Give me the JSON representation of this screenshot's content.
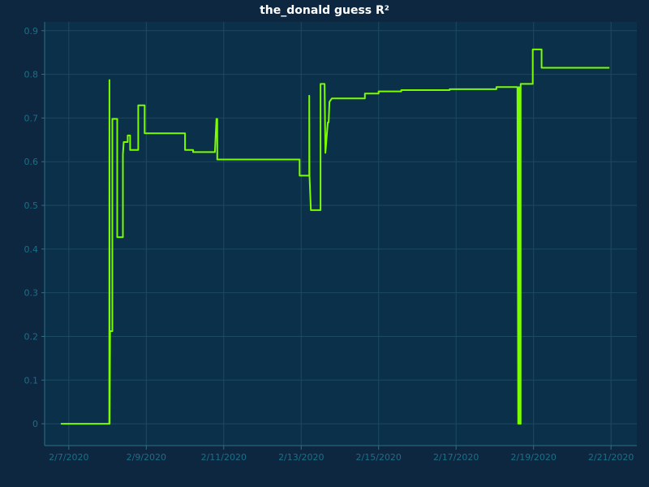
{
  "chart_data": {
    "type": "line",
    "title": "the_donald guess R²",
    "xlabel": "",
    "ylabel": "",
    "x_axis": {
      "type": "date",
      "range": [
        "2020-02-06T09:00",
        "2020-02-21T16:00"
      ],
      "ticks": [
        {
          "value": "2020-02-07T00:00",
          "label": "2/7/2020"
        },
        {
          "value": "2020-02-09T00:00",
          "label": "2/9/2020"
        },
        {
          "value": "2020-02-11T00:00",
          "label": "2/11/2020"
        },
        {
          "value": "2020-02-13T00:00",
          "label": "2/13/2020"
        },
        {
          "value": "2020-02-15T00:00",
          "label": "2/15/2020"
        },
        {
          "value": "2020-02-17T00:00",
          "label": "2/17/2020"
        },
        {
          "value": "2020-02-19T00:00",
          "label": "2/19/2020"
        },
        {
          "value": "2020-02-21T00:00",
          "label": "2/21/2020"
        }
      ]
    },
    "y_axis": {
      "range": [
        -0.05,
        0.92
      ],
      "ticks": [
        0,
        0.1,
        0.2,
        0.3,
        0.4,
        0.5,
        0.6,
        0.7,
        0.8,
        0.9
      ]
    },
    "grid": true,
    "legend": "none",
    "colors": {
      "page_background": "#0d2740",
      "plot_background": "#0b3049",
      "grid": "#1d4a60",
      "axis": "#2c6f85",
      "tick_text": "#1c6f87",
      "title": "#ffffff",
      "line": "#7cfc00"
    },
    "series": [
      {
        "points": [
          [
            "2020-02-06T19:00",
            0
          ],
          [
            "2020-02-08T01:05",
            0
          ],
          [
            "2020-02-08T01:10",
            0.787
          ],
          [
            "2020-02-08T01:20",
            0
          ],
          [
            "2020-02-08T01:35",
            0.212
          ],
          [
            "2020-02-08T03:00",
            0.212
          ],
          [
            "2020-02-08T03:00",
            0.698
          ],
          [
            "2020-02-08T06:00",
            0.698
          ],
          [
            "2020-02-08T06:00",
            0.427
          ],
          [
            "2020-02-08T09:30",
            0.427
          ],
          [
            "2020-02-08T09:30",
            0.617
          ],
          [
            "2020-02-08T10:00",
            0.645
          ],
          [
            "2020-02-08T12:30",
            0.645
          ],
          [
            "2020-02-08T12:30",
            0.66
          ],
          [
            "2020-02-08T14:00",
            0.66
          ],
          [
            "2020-02-08T14:00",
            0.627
          ],
          [
            "2020-02-08T19:00",
            0.627
          ],
          [
            "2020-02-08T19:00",
            0.729
          ],
          [
            "2020-02-08T23:00",
            0.729
          ],
          [
            "2020-02-08T23:00",
            0.665
          ],
          [
            "2020-02-10T00:00",
            0.665
          ],
          [
            "2020-02-10T00:00",
            0.627
          ],
          [
            "2020-02-10T05:00",
            0.627
          ],
          [
            "2020-02-10T05:00",
            0.622
          ],
          [
            "2020-02-10T18:30",
            0.622
          ],
          [
            "2020-02-10T19:30",
            0.698
          ],
          [
            "2020-02-10T20:00",
            0.698
          ],
          [
            "2020-02-10T20:00",
            0.605
          ],
          [
            "2020-02-12T23:00",
            0.605
          ],
          [
            "2020-02-12T23:00",
            0.568
          ],
          [
            "2020-02-13T05:00",
            0.568
          ],
          [
            "2020-02-13T05:00",
            0.751
          ],
          [
            "2020-02-13T05:10",
            0.568
          ],
          [
            "2020-02-13T06:00",
            0.489
          ],
          [
            "2020-02-13T12:00",
            0.489
          ],
          [
            "2020-02-13T12:00",
            0.778
          ],
          [
            "2020-02-13T14:30",
            0.778
          ],
          [
            "2020-02-13T15:00",
            0.62
          ],
          [
            "2020-02-13T16:30",
            0.69
          ],
          [
            "2020-02-13T17:00",
            0.69
          ],
          [
            "2020-02-13T17:30",
            0.737
          ],
          [
            "2020-02-13T19:00",
            0.745
          ],
          [
            "2020-02-14T15:30",
            0.745
          ],
          [
            "2020-02-14T15:30",
            0.756
          ],
          [
            "2020-02-15T00:00",
            0.756
          ],
          [
            "2020-02-15T00:00",
            0.761
          ],
          [
            "2020-02-15T14:00",
            0.761
          ],
          [
            "2020-02-15T14:00",
            0.764
          ],
          [
            "2020-02-16T20:00",
            0.764
          ],
          [
            "2020-02-16T20:00",
            0.766
          ],
          [
            "2020-02-18T01:00",
            0.766
          ],
          [
            "2020-02-18T01:00",
            0.771
          ],
          [
            "2020-02-18T14:00",
            0.771
          ],
          [
            "2020-02-18T14:30",
            0
          ],
          [
            "2020-02-18T15:00",
            0.771
          ],
          [
            "2020-02-18T15:30",
            0
          ],
          [
            "2020-02-18T16:00",
            0
          ],
          [
            "2020-02-18T16:00",
            0.778
          ],
          [
            "2020-02-18T23:30",
            0.778
          ],
          [
            "2020-02-18T23:30",
            0.857
          ],
          [
            "2020-02-19T05:00",
            0.857
          ],
          [
            "2020-02-19T05:00",
            0.815
          ],
          [
            "2020-02-20T23:00",
            0.815
          ]
        ]
      }
    ]
  }
}
